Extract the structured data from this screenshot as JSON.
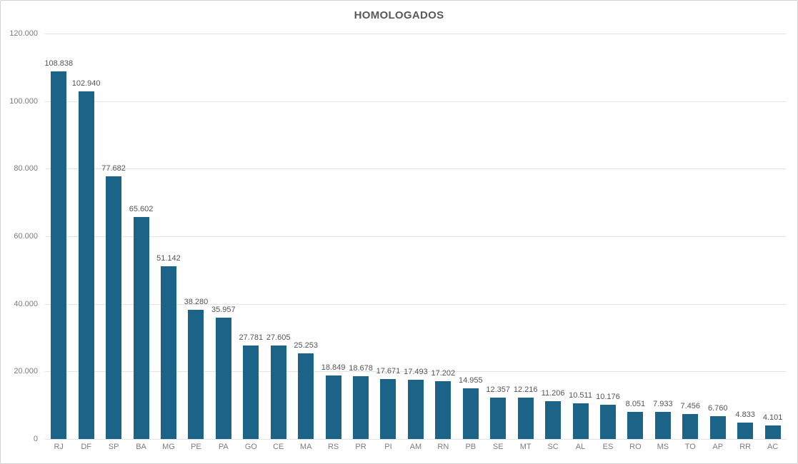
{
  "window": {
    "background": "#ffffff",
    "border_color": "#d2d2d2"
  },
  "chart_data": {
    "type": "bar",
    "title": "HOMOLOGADOS",
    "xlabel": "",
    "ylabel": "",
    "ylim": [
      0,
      120000
    ],
    "grid": true,
    "legend": "none",
    "categories": [
      "RJ",
      "DF",
      "SP",
      "BA",
      "MG",
      "PE",
      "PA",
      "GO",
      "CE",
      "MA",
      "RS",
      "PR",
      "PI",
      "AM",
      "RN",
      "PB",
      "SE",
      "MT",
      "SC",
      "AL",
      "ES",
      "RO",
      "MS",
      "TO",
      "AP",
      "RR",
      "AC"
    ],
    "values": [
      108838,
      102940,
      77682,
      65602,
      51142,
      38280,
      35957,
      27781,
      27605,
      25253,
      18849,
      18678,
      17671,
      17493,
      17202,
      14955,
      12357,
      12216,
      11206,
      10511,
      10176,
      8051,
      7933,
      7456,
      6760,
      4833,
      4101
    ],
    "value_labels": [
      "108.838",
      "102.940",
      "77.682",
      "65.602",
      "51.142",
      "38.280",
      "35.957",
      "27.781",
      "27.605",
      "25.253",
      "18.849",
      "18.678",
      "17.671",
      "17.493",
      "17.202",
      "14.955",
      "12.357",
      "12.216",
      "11.206",
      "10.511",
      "10.176",
      "8.051",
      "7.933",
      "7.456",
      "6.760",
      "4.833",
      "4.101"
    ],
    "y_ticks": [
      {
        "value": 0,
        "label": "0"
      },
      {
        "value": 20000,
        "label": "20.000"
      },
      {
        "value": 40000,
        "label": "40.000"
      },
      {
        "value": 60000,
        "label": "60.000"
      },
      {
        "value": 80000,
        "label": "80.000"
      },
      {
        "value": 100000,
        "label": "100.000"
      },
      {
        "value": 120000,
        "label": "120.000"
      }
    ],
    "colors": {
      "bar": "#1b6487",
      "title": "#595959",
      "value_label": "#545454",
      "axis_label": "#7b7b7b",
      "gridline": "#e4e4e4"
    }
  }
}
